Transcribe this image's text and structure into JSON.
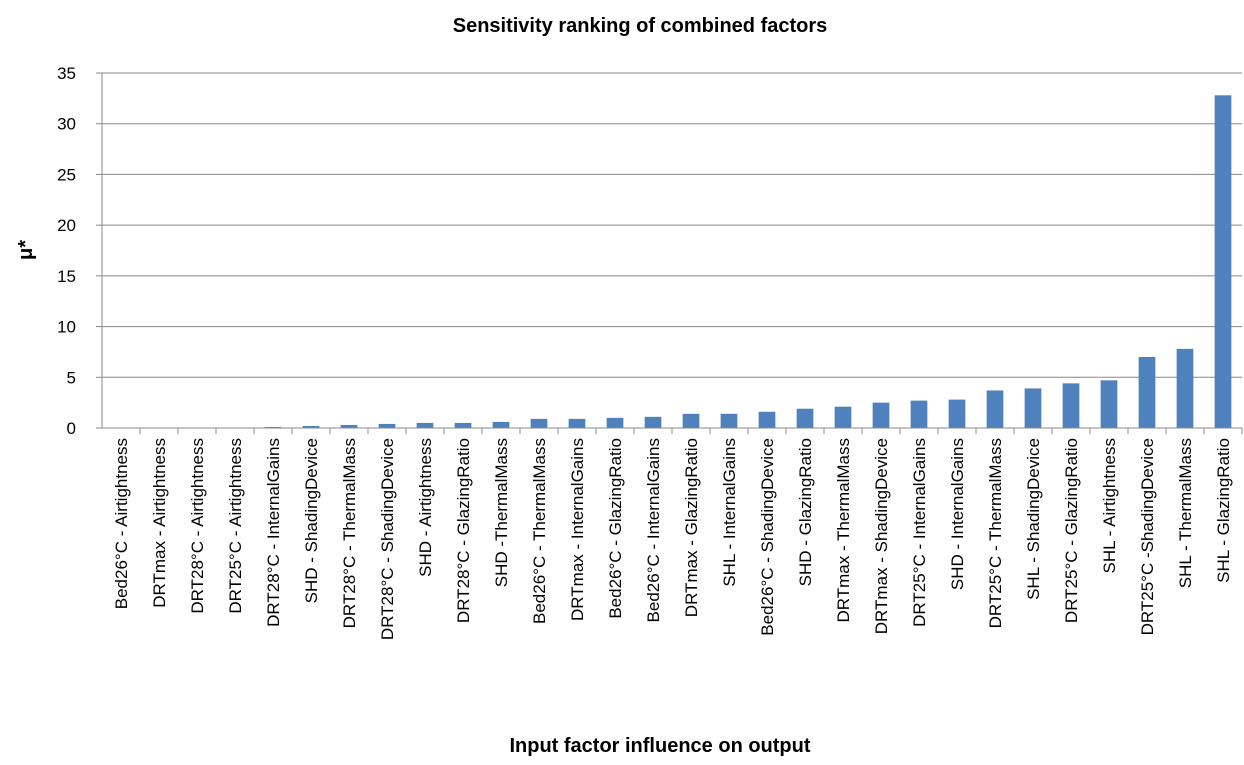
{
  "chart_data": {
    "type": "bar",
    "title": "Sensitivity ranking of combined factors",
    "x_label": "Input factor influence on output",
    "y_label": "μ*",
    "categories": [
      "Bed26°C - Airtightness",
      "DRTmax - Airtightness",
      "DRT28°C - Airtightness",
      "DRT25°C - Airtightness",
      "DRT28°C - InternalGains",
      "SHD - ShadingDevice",
      "DRT28°C - ThermalMass",
      "DRT28°C - ShadingDevice",
      "SHD - Airtightness",
      "DRT28°C - GlazingRatio",
      "SHD -ThermalMass",
      "Bed26°C - ThermalMass",
      "DRTmax - InternalGains",
      "Bed26°C - GlazingRatio",
      "Bed26°C - InternalGains",
      "DRTmax - GlazingRatio",
      "SHL - InternalGains",
      "Bed26°C - ShadingDevice",
      "SHD - GlazingRatio",
      "DRTmax - ThermalMass",
      "DRTmax - ShadingDevice",
      "DRT25°C - InternalGains",
      "SHD - InternalGains",
      "DRT25°C - ThermalMass",
      "SHL - ShadingDevice",
      "DRT25°C - GlazingRatio",
      "SHL - Airtightness",
      "DRT25°C -ShadingDevice",
      "SHL - ThermalMass",
      "SHL - GlazingRatio"
    ],
    "values": [
      0,
      0,
      0,
      0.02,
      0.1,
      0.2,
      0.3,
      0.4,
      0.5,
      0.5,
      0.6,
      0.9,
      0.9,
      1.0,
      1.1,
      1.4,
      1.4,
      1.6,
      1.9,
      2.1,
      2.5,
      2.7,
      2.8,
      3.7,
      3.9,
      4.4,
      4.7,
      7.0,
      7.8,
      32.8
    ],
    "color": "#4f81bd",
    "ylim": [
      0,
      35
    ],
    "yticks": [
      0,
      5,
      10,
      15,
      20,
      25,
      30,
      35
    ],
    "grid": true
  }
}
